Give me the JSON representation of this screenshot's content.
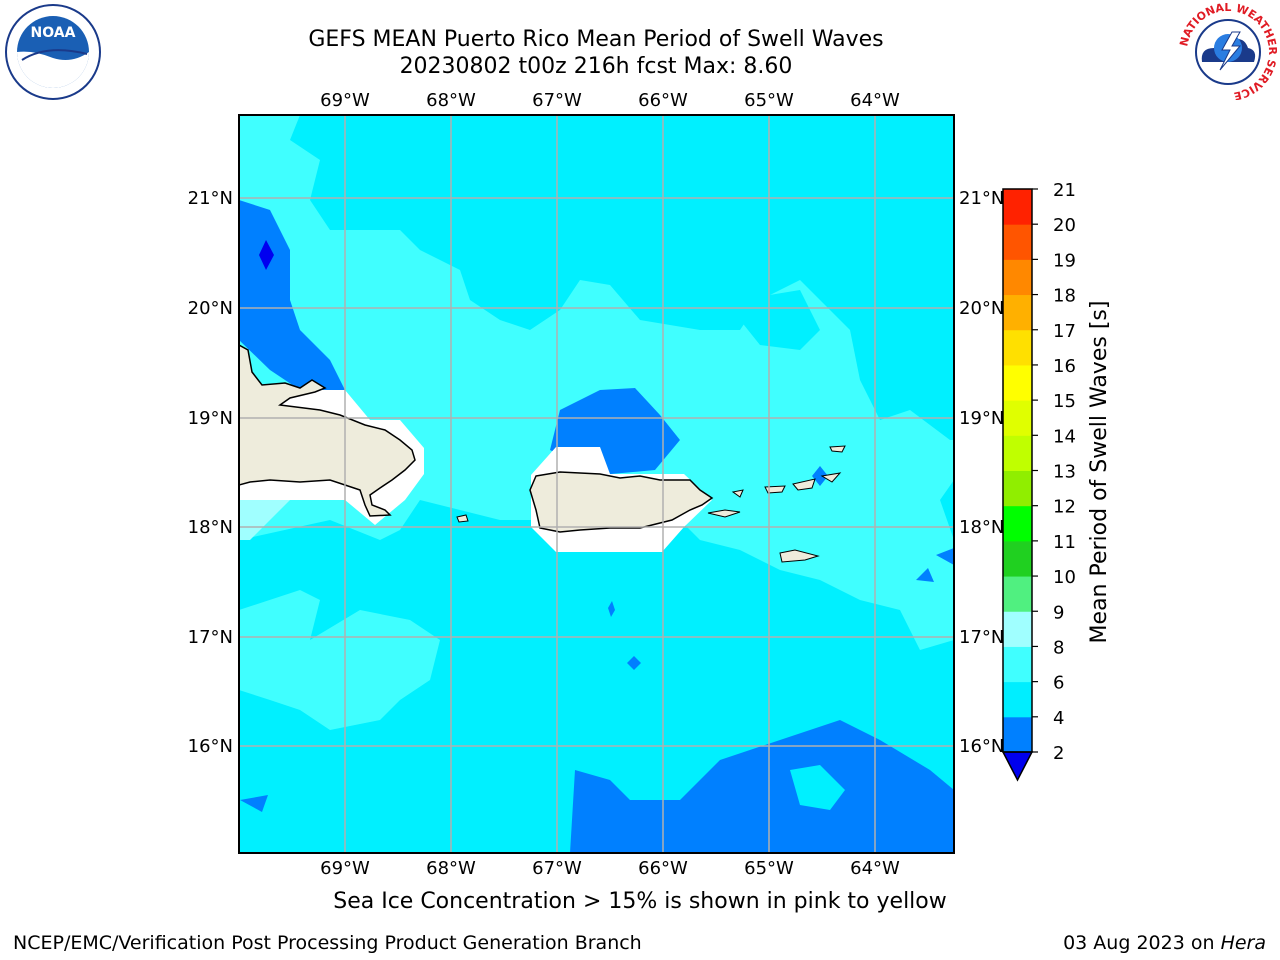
{
  "header": {
    "title_line1": "GEFS MEAN Puerto Rico Mean Period of Swell Waves",
    "title_line2": "20230802 t00z 216h fcst   Max: 8.60"
  },
  "map": {
    "lon_labels": [
      "69°W",
      "68°W",
      "67°W",
      "66°W",
      "65°W",
      "64°W"
    ],
    "lat_labels": [
      "21°N",
      "20°N",
      "19°N",
      "18°N",
      "17°N",
      "16°N"
    ],
    "colors": {
      "ocean_base": "#00f0ff",
      "band_2_4": "#0080ff",
      "band_6_8": "#40ffff",
      "band_8_9": "#a0ffff",
      "below_2": "#0000f0",
      "land": "#eeecdc",
      "grid": "#b0b0b0"
    }
  },
  "colorbar": {
    "label": "Mean Period of Swell Waves [s]",
    "ticks": [
      "2",
      "4",
      "6",
      "8",
      "9",
      "10",
      "11",
      "12",
      "13",
      "14",
      "15",
      "16",
      "17",
      "18",
      "19",
      "20",
      "21"
    ],
    "colors": [
      "#0080ff",
      "#00eeff",
      "#40ffff",
      "#a0ffff",
      "#50f080",
      "#20d020",
      "#00ff00",
      "#90ee00",
      "#c0ff00",
      "#e0ff00",
      "#ffff00",
      "#ffe000",
      "#ffb000",
      "#ff8800",
      "#ff5500",
      "#ff2200"
    ],
    "under_color": "#0000ee"
  },
  "footer": {
    "caption": "Sea Ice Concentration > 15% is shown in pink to yellow",
    "credit_left": "NCEP/EMC/Verification Post Processing Product Generation Branch",
    "credit_right_date": "03 Aug 2023 on ",
    "credit_right_host": "Hera"
  },
  "logos": {
    "noaa_text": "NOAA",
    "nws_ring_text": "NATIONAL WEATHER SERVICE"
  }
}
